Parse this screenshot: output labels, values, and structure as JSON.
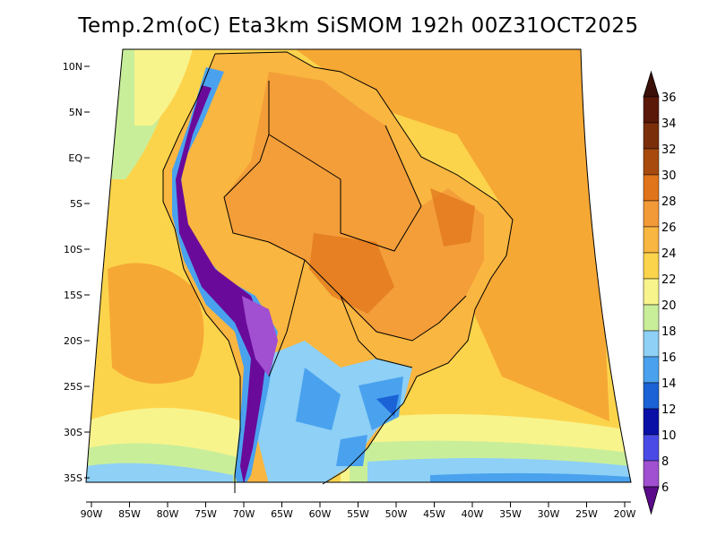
{
  "title": "Temp.2m(oC) Eta3km SiSMOM 192h 00Z31OCT2025",
  "colors": {
    "ocean_warm": "#f6a834",
    "ocean_mid": "#fcd44c",
    "ocean_cool": "#f8f48c",
    "ocean_cold": "#c9ee9a",
    "cold_shelf": "#8ed0f6",
    "cold_deep": "#4aa2ee",
    "andes": "#6a2aa6",
    "land_hot": "#f39a38"
  },
  "map": {
    "lat_labels": [
      "10N",
      "5N",
      "EQ",
      "5S",
      "10S",
      "15S",
      "20S",
      "25S",
      "30S",
      "35S"
    ],
    "lon_labels": [
      "90W",
      "85W",
      "80W",
      "75W",
      "70W",
      "65W",
      "60W",
      "55W",
      "50W",
      "45W",
      "40W",
      "35W",
      "30W",
      "25W",
      "20W"
    ]
  },
  "colorbar": {
    "labels": [
      "36",
      "34",
      "32",
      "30",
      "28",
      "26",
      "24",
      "22",
      "20",
      "18",
      "16",
      "14",
      "12",
      "10",
      "8",
      "6"
    ],
    "colors": [
      "#5a1808",
      "#7a2e0a",
      "#a84a0e",
      "#e0741a",
      "#f39a38",
      "#f9b640",
      "#fcd44c",
      "#f8f48c",
      "#c9ee9a",
      "#8ed0f6",
      "#4aa2ee",
      "#1a62d6",
      "#0a10a6",
      "#4a4ae6",
      "#a050d0",
      "#6a0a9a"
    ],
    "top_color": "#3a1008",
    "bottom_color": "#5a0a8a"
  }
}
